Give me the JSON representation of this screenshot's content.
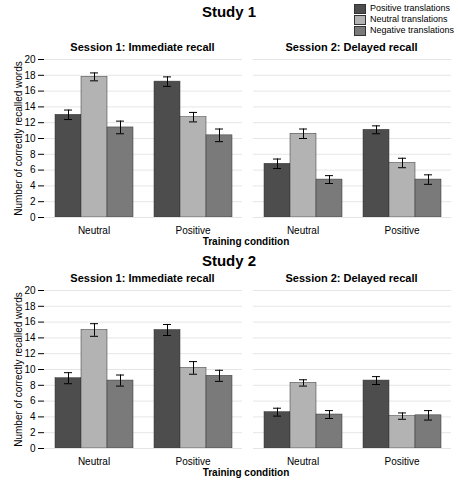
{
  "chart_data": [
    {
      "type": "bar",
      "title": "Study 1",
      "ylabel": "Number of correctly recalled words",
      "xlabel": "Training condition",
      "categories": [
        "Neutral",
        "Positive"
      ],
      "ylim": [
        0,
        20
      ],
      "yticks": [
        0,
        2,
        4,
        6,
        8,
        10,
        12,
        14,
        16,
        18,
        20
      ],
      "grid": true,
      "legend": "top-right",
      "panels": [
        {
          "title": "Session 1: Immediate recall",
          "series": [
            {
              "name": "Positive translations",
              "color": "#4d4d4d",
              "values": [
                13.0,
                17.2
              ],
              "errors": [
                0.6,
                0.6
              ]
            },
            {
              "name": "Neutral translations",
              "color": "#b3b3b3",
              "values": [
                17.8,
                12.7
              ],
              "errors": [
                0.5,
                0.6
              ]
            },
            {
              "name": "Negative translations",
              "color": "#7a7a7a",
              "values": [
                11.4,
                10.4
              ],
              "errors": [
                0.8,
                0.8
              ]
            }
          ]
        },
        {
          "title": "Session 2: Delayed recall",
          "series": [
            {
              "name": "Positive translations",
              "color": "#4d4d4d",
              "values": [
                6.8,
                11.1
              ],
              "errors": [
                0.6,
                0.5
              ]
            },
            {
              "name": "Neutral translations",
              "color": "#b3b3b3",
              "values": [
                10.6,
                6.9
              ],
              "errors": [
                0.6,
                0.6
              ]
            },
            {
              "name": "Negative translations",
              "color": "#7a7a7a",
              "values": [
                4.8,
                4.8
              ],
              "errors": [
                0.5,
                0.6
              ]
            }
          ]
        }
      ]
    },
    {
      "type": "bar",
      "title": "Study 2",
      "ylabel": "Number of correctly recalled words",
      "xlabel": "Training condition",
      "categories": [
        "Neutral",
        "Positive"
      ],
      "ylim": [
        0,
        20
      ],
      "yticks": [
        0,
        2,
        4,
        6,
        8,
        10,
        12,
        14,
        16,
        18,
        20
      ],
      "grid": true,
      "panels": [
        {
          "title": "Session 1: Immediate recall",
          "series": [
            {
              "name": "Positive translations",
              "color": "#4d4d4d",
              "values": [
                8.9,
                15.0
              ],
              "errors": [
                0.7,
                0.7
              ]
            },
            {
              "name": "Neutral translations",
              "color": "#b3b3b3",
              "values": [
                15.0,
                10.2
              ],
              "errors": [
                0.8,
                0.8
              ]
            },
            {
              "name": "Negative translations",
              "color": "#7a7a7a",
              "values": [
                8.6,
                9.2
              ],
              "errors": [
                0.7,
                0.7
              ]
            }
          ]
        },
        {
          "title": "Session 2: Delayed recall",
          "series": [
            {
              "name": "Positive translations",
              "color": "#4d4d4d",
              "values": [
                4.6,
                8.6
              ],
              "errors": [
                0.5,
                0.5
              ]
            },
            {
              "name": "Neutral translations",
              "color": "#b3b3b3",
              "values": [
                8.3,
                4.1
              ],
              "errors": [
                0.4,
                0.4
              ]
            },
            {
              "name": "Negative translations",
              "color": "#7a7a7a",
              "values": [
                4.3,
                4.2
              ],
              "errors": [
                0.5,
                0.6
              ]
            }
          ]
        }
      ]
    }
  ]
}
